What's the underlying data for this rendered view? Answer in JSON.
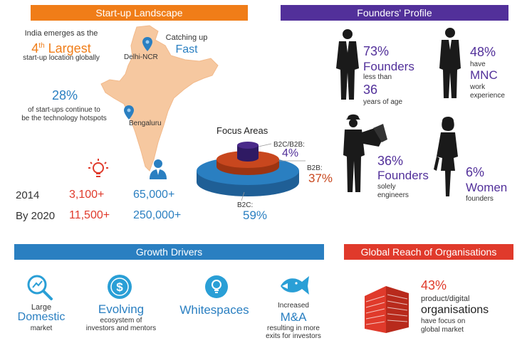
{
  "banners": {
    "startup": "Start-up Landscape",
    "founders": "Founders' Profile",
    "growth": "Growth Drivers",
    "global": "Global Reach of Organisations"
  },
  "landscape": {
    "intro_line1": "India emerges as the",
    "rank_number": "4",
    "rank_suffix": "th",
    "rank_word": "Largest",
    "intro_line2": "start-up location globally",
    "catching_up": "Catching up",
    "fast": "Fast",
    "delhi": "Delhi-NCR",
    "bengaluru": "Bengaluru",
    "hotspot_percent": "28%",
    "hotspot_line1": "of start-ups continue to",
    "hotspot_line2": "be the technology hotspots"
  },
  "stats": {
    "rows": [
      {
        "year": "2014",
        "startups": "3,100+",
        "employees": "65,000+"
      },
      {
        "year": "By 2020",
        "startups": "11,500+",
        "employees": "250,000+"
      }
    ]
  },
  "focus": {
    "title": "Focus Areas",
    "segments": [
      {
        "label": "B2C/B2B:",
        "value": "4%",
        "percent": 4,
        "color": "#4a2a8a"
      },
      {
        "label": "B2B:",
        "value": "37%",
        "percent": 37,
        "color": "#c8471e"
      },
      {
        "label": "B2C:",
        "value": "59%",
        "percent": 59,
        "color": "#2a7fc1"
      }
    ]
  },
  "founders": {
    "age_percent": "73%",
    "age_word": "Founders",
    "age_line1": "less than",
    "age_number": "36",
    "age_line2": "years of age",
    "mnc_percent": "48%",
    "mnc_have": "have",
    "mnc_word": "MNC",
    "mnc_line1": "work",
    "mnc_line2": "experience",
    "eng_percent": "36%",
    "eng_word": "Founders",
    "eng_line1": "solely",
    "eng_line2": "engineers",
    "women_percent": "6%",
    "women_word": "Women",
    "women_line": "founders"
  },
  "growth": {
    "domestic_top": "Large",
    "domestic_main": "Domestic",
    "domestic_bottom": "market",
    "evolving_main": "Evolving",
    "evolving_line1": "ecosystem of",
    "evolving_line2": "investors and mentors",
    "whitespaces": "Whitespaces",
    "ma_top": "Increased",
    "ma_main": "M&A",
    "ma_line1": "resulting in more",
    "ma_line2": "exits for investors"
  },
  "global": {
    "percent": "43%",
    "line1": "product/digital",
    "main": "organisations",
    "line2": "have focus on",
    "line3": "global market"
  },
  "colors": {
    "orange": "#f07d18",
    "purple": "#52309a",
    "blue": "#2a7fc1",
    "red": "#e03a2b"
  }
}
